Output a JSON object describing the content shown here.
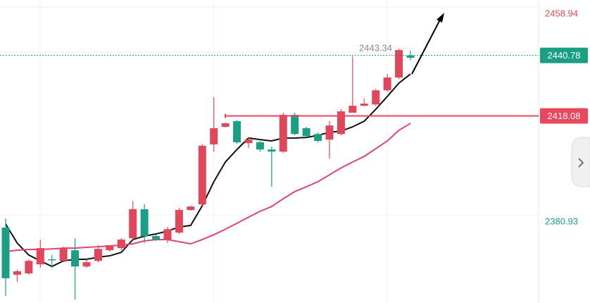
{
  "chart_data": {
    "type": "candlestick",
    "ylim": [
      2347.9,
      2461.58
    ],
    "yticks": [
      2458.94,
      2380.93
    ],
    "grid": true,
    "up_color": "#1a9e84",
    "down_color": "#e0475a",
    "candles": {
      "open": [
        2357.2,
        2359.8,
        2363.7,
        2368.5,
        2364.0,
        2368.5,
        2361.6,
        2363.2,
        2368.2,
        2369.6,
        2371.7,
        2383.1,
        2373.0,
        2371.7,
        2375.6,
        2382.8,
        2384.1,
        2406.9,
        2413.5,
        2415.3,
        2408.2,
        2409.2,
        2405.5,
        2404.7,
        2418.5,
        2411.3,
        2410.5,
        2408.7,
        2414.5,
        2419.8,
        2421.9,
        2422.7,
        2427.7,
        2432.5,
        2442.8,
        2439.9
      ],
      "close": [
        2376.2,
        2358.5,
        2359.0,
        2362.4,
        2364.3,
        2363.7,
        2367.7,
        2361.6,
        2363.7,
        2367.7,
        2368.5,
        2372.2,
        2383.1,
        2373.0,
        2371.7,
        2374.3,
        2382.8,
        2384.9,
        2407.4,
        2414.0,
        2416.1,
        2407.9,
        2408.2,
        2405.5,
        2404.7,
        2418.5,
        2413.5,
        2411.3,
        2409.2,
        2411.3,
        2419.3,
        2421.9,
        2422.4,
        2427.7,
        2432.5,
        2440.78
      ],
      "high": [
        2379.6,
        2360.4,
        2364.3,
        2371.7,
        2365.9,
        2369.0,
        2372.2,
        2364.3,
        2369.6,
        2369.6,
        2372.2,
        2386.2,
        2384.9,
        2373.5,
        2376.4,
        2383.6,
        2384.4,
        2407.4,
        2425.1,
        2415.6,
        2416.6,
        2410.0,
        2408.7,
        2406.6,
        2419.3,
        2419.3,
        2414.0,
        2411.9,
        2416.1,
        2420.6,
        2440.4,
        2424.6,
        2428.2,
        2433.8,
        2443.34,
        2442.6
      ],
      "low": [
        2350.5,
        2355.8,
        2358.5,
        2361.1,
        2361.1,
        2363.2,
        2349.2,
        2361.1,
        2363.2,
        2367.2,
        2367.7,
        2371.7,
        2370.4,
        2371.2,
        2370.4,
        2373.8,
        2382.5,
        2384.4,
        2404.7,
        2413.7,
        2407.6,
        2406.1,
        2404.7,
        2391.5,
        2404.2,
        2410.8,
        2410.0,
        2408.2,
        2402.1,
        2410.8,
        2419.3,
        2421.6,
        2421.9,
        2427.1,
        2431.9,
        2438.9
      ]
    },
    "moving_averages": [
      {
        "color": "#111111",
        "values": [
          2377.5,
          2370.4,
          2365.9,
          2363.7,
          2361.6,
          2363.7,
          2364.3,
          2364.3,
          2365.1,
          2365.6,
          2366.9,
          2371.7,
          2373.0,
          2373.8,
          2374.9,
          2376.4,
          2377.0,
          2384.4,
          2393.4,
          2400.8,
          2405.5,
          2409.8,
          2409.2,
          2408.7,
          2409.8,
          2409.8,
          2410.0,
          2410.8,
          2411.9,
          2412.4,
          2414.0,
          2416.1,
          2420.6,
          2425.4,
          2430.4,
          2433.8
        ]
      },
      {
        "color": "#e0407f",
        "values": [
          2367.2,
          2367.7,
          2368.0,
          2368.0,
          2368.2,
          2368.5,
          2368.5,
          2368.8,
          2369.0,
          2369.3,
          2369.6,
          2370.1,
          2371.2,
          2371.7,
          2371.7,
          2370.9,
          2370.1,
          2371.7,
          2373.5,
          2375.6,
          2377.8,
          2380.1,
          2382.3,
          2384.1,
          2387.0,
          2389.7,
          2391.5,
          2393.4,
          2396.0,
          2398.6,
          2400.8,
          2402.9,
          2405.8,
          2408.7,
          2412.7,
          2415.3
        ]
      }
    ],
    "high_label": 2443.34,
    "last_price": 2440.78,
    "last_price_color": "#1a9e84",
    "price_line": 2418.08,
    "price_line_color": "#e8475c"
  }
}
